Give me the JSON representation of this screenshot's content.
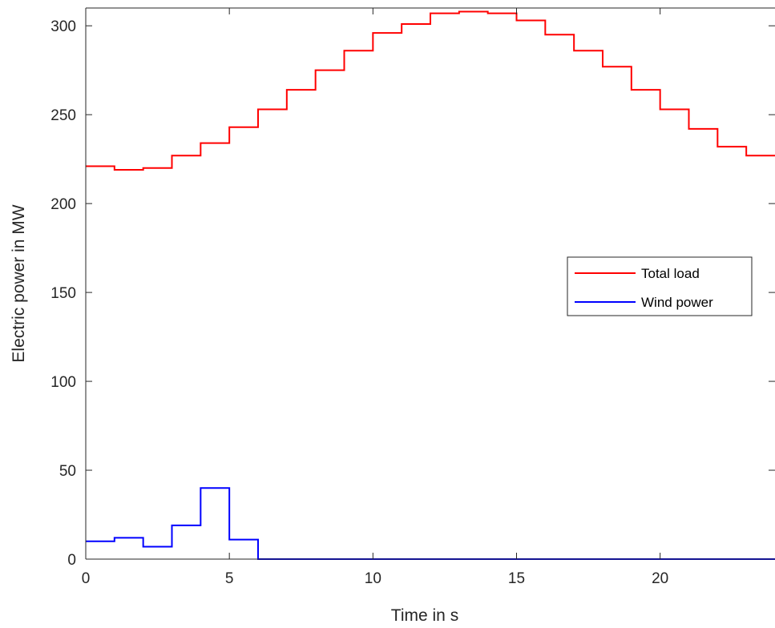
{
  "chart_data": {
    "type": "line",
    "step": true,
    "xlabel": "Time in s",
    "ylabel": "Electric power in MW",
    "xlim": [
      0,
      24
    ],
    "ylim": [
      0,
      310
    ],
    "xticks": [
      0,
      5,
      10,
      15,
      20
    ],
    "yticks": [
      0,
      50,
      100,
      150,
      200,
      250,
      300
    ],
    "x": [
      0,
      1,
      2,
      3,
      4,
      5,
      6,
      7,
      8,
      9,
      10,
      11,
      12,
      13,
      14,
      15,
      16,
      17,
      18,
      19,
      20,
      21,
      22,
      23,
      24
    ],
    "series": [
      {
        "name": "Total load",
        "color": "#ff0000",
        "values": [
          221,
          219,
          220,
          227,
          234,
          243,
          253,
          264,
          275,
          286,
          296,
          301,
          307,
          308,
          307,
          303,
          295,
          286,
          277,
          264,
          253,
          242,
          232,
          227,
          227
        ]
      },
      {
        "name": "Wind power",
        "color": "#0000ff",
        "values": [
          10,
          12,
          7,
          19,
          40,
          11,
          0,
          0,
          0,
          0,
          0,
          0,
          0,
          0,
          0,
          0,
          0,
          0,
          0,
          0,
          0,
          0,
          0,
          0,
          0
        ]
      }
    ],
    "grid": false,
    "legend_position": "right"
  }
}
